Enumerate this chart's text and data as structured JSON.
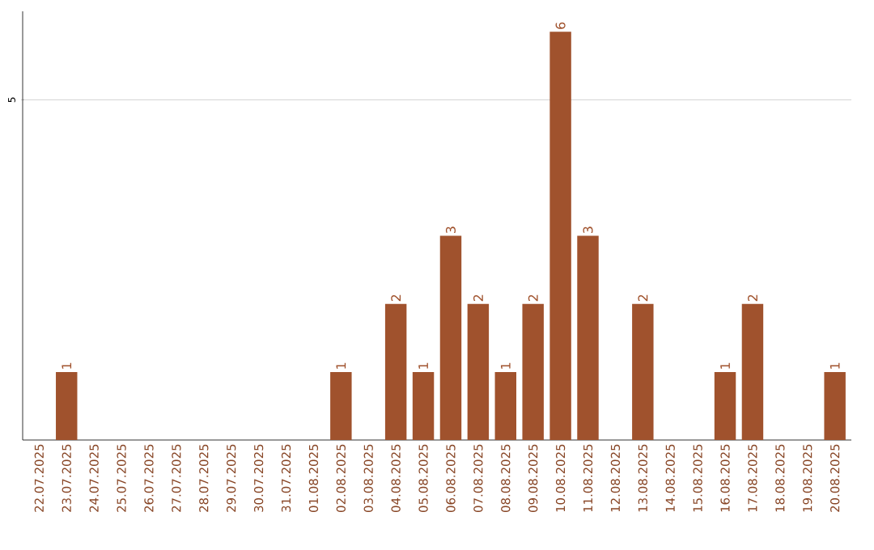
{
  "chart_data": {
    "type": "bar",
    "categories": [
      "22.07.2025",
      "23.07.2025",
      "24.07.2025",
      "25.07.2025",
      "26.07.2025",
      "27.07.2025",
      "28.07.2025",
      "29.07.2025",
      "30.07.2025",
      "31.07.2025",
      "01.08.2025",
      "02.08.2025",
      "03.08.2025",
      "04.08.2025",
      "05.08.2025",
      "06.08.2025",
      "07.08.2025",
      "08.08.2025",
      "09.08.2025",
      "10.08.2025",
      "11.08.2025",
      "12.08.2025",
      "13.08.2025",
      "14.08.2025",
      "15.08.2025",
      "16.08.2025",
      "17.08.2025",
      "18.08.2025",
      "19.08.2025",
      "20.08.2025"
    ],
    "values": [
      0,
      1,
      0,
      0,
      0,
      0,
      0,
      0,
      0,
      0,
      0,
      1,
      0,
      2,
      1,
      3,
      2,
      1,
      2,
      6,
      3,
      0,
      2,
      0,
      0,
      1,
      2,
      0,
      0,
      1
    ],
    "value_labels": [
      null,
      "1",
      null,
      null,
      null,
      null,
      null,
      null,
      null,
      null,
      null,
      "1",
      null,
      "2",
      "1",
      "3",
      "2",
      "1",
      "2",
      "6",
      "3",
      null,
      "2",
      null,
      null,
      "1",
      "2",
      null,
      null,
      "1"
    ],
    "color": "#a0522d",
    "ylim": [
      0,
      6.3
    ],
    "yticks": [
      5
    ],
    "grid": "y"
  }
}
